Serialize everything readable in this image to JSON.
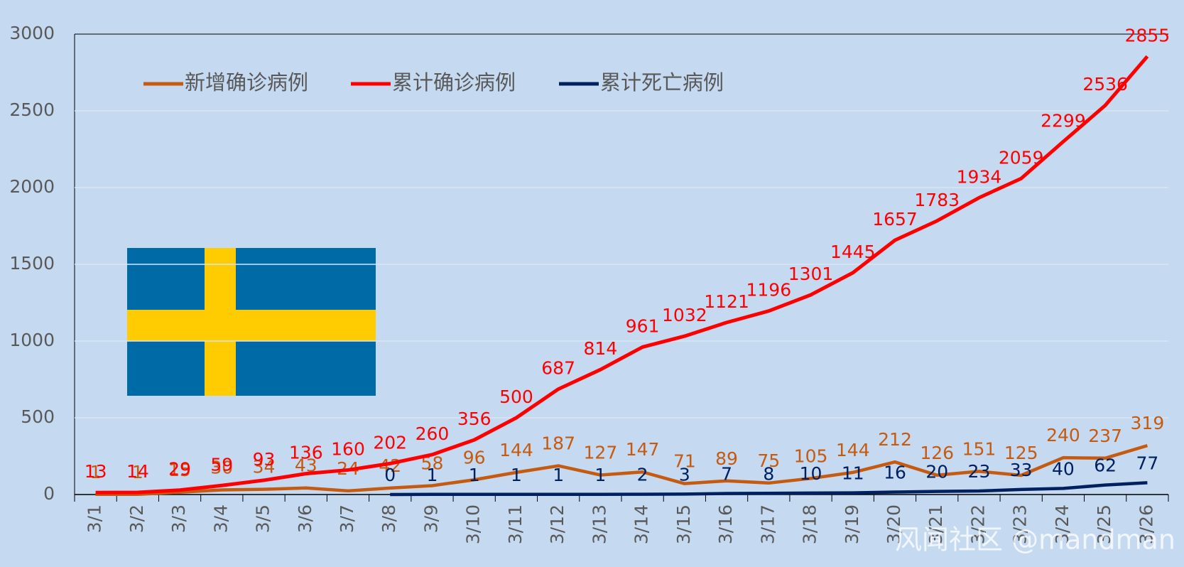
{
  "chart_data": {
    "type": "line",
    "categories": [
      "3/1",
      "3/2",
      "3/3",
      "3/4",
      "3/5",
      "3/6",
      "3/7",
      "3/8",
      "3/9",
      "3/10",
      "3/11",
      "3/12",
      "3/13",
      "3/14",
      "3/15",
      "3/16",
      "3/17",
      "3/18",
      "3/19",
      "3/20",
      "3/21",
      "3/22",
      "3/23",
      "3/24",
      "3/25",
      "3/26"
    ],
    "series": [
      {
        "name": "新增确诊病例",
        "color": "#c55a11",
        "values": [
          1,
          1,
          15,
          30,
          34,
          43,
          24,
          42,
          58,
          96,
          144,
          187,
          127,
          147,
          71,
          89,
          75,
          105,
          144,
          212,
          126,
          151,
          125,
          240,
          237,
          319
        ]
      },
      {
        "name": "累计确诊病例",
        "color": "#ff0000",
        "values": [
          13,
          14,
          29,
          59,
          93,
          136,
          160,
          202,
          260,
          356,
          500,
          687,
          814,
          961,
          1032,
          1121,
          1196,
          1301,
          1445,
          1657,
          1783,
          1934,
          2059,
          2299,
          2536,
          2855
        ]
      },
      {
        "name": "累计死亡病例",
        "color": "#002060",
        "values": [
          null,
          null,
          null,
          null,
          null,
          null,
          null,
          0,
          1,
          1,
          1,
          1,
          1,
          2,
          3,
          7,
          8,
          10,
          11,
          16,
          20,
          23,
          33,
          40,
          62,
          77
        ]
      }
    ],
    "ylim": [
      0,
      3000
    ],
    "yticks": [
      0,
      500,
      1000,
      1500,
      2000,
      2500,
      3000
    ],
    "grid": true,
    "legend": "top-left",
    "watermark": "风闻社区 @mandman"
  }
}
